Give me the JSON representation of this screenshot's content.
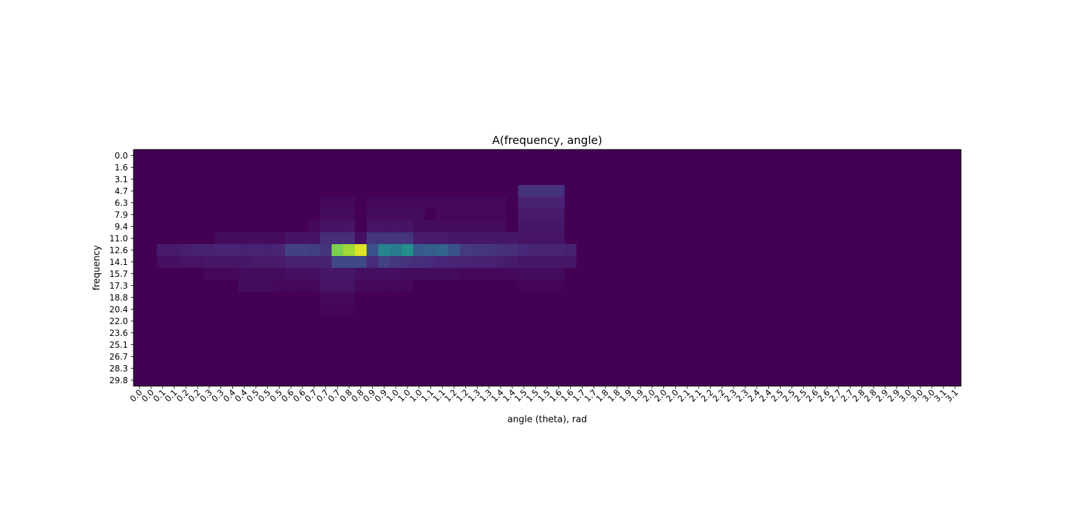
{
  "chart_data": {
    "type": "heatmap",
    "title": "A(frequency, angle)",
    "xlabel": "angle (theta), rad",
    "ylabel": "frequency",
    "colormap": "viridis",
    "value_range": [
      0,
      1
    ],
    "y_tick_labels": [
      "0.0",
      "1.6",
      "3.1",
      "4.7",
      "6.3",
      "7.9",
      "9.4",
      "11.0",
      "12.6",
      "14.1",
      "15.7",
      "17.3",
      "18.8",
      "20.4",
      "22.0",
      "23.6",
      "25.1",
      "26.7",
      "28.3",
      "29.8"
    ],
    "x_tick_labels": [
      "0.0",
      "0.0",
      "0.1",
      "0.1",
      "0.2",
      "0.2",
      "0.3",
      "0.3",
      "0.4",
      "0.4",
      "0.5",
      "0.5",
      "0.5",
      "0.6",
      "0.6",
      "0.7",
      "0.7",
      "0.7",
      "0.8",
      "0.8",
      "0.9",
      "0.9",
      "1.0",
      "1.0",
      "1.0",
      "1.1",
      "1.1",
      "1.2",
      "1.2",
      "1.3",
      "1.3",
      "1.4",
      "1.4",
      "1.5",
      "1.5",
      "1.5",
      "1.6",
      "1.6",
      "1.7",
      "1.7",
      "1.8",
      "1.8",
      "1.9",
      "1.9",
      "2.0",
      "2.0",
      "2.0",
      "2.1",
      "2.1",
      "2.2",
      "2.2",
      "2.3",
      "2.3",
      "2.4",
      "2.4",
      "2.5",
      "2.5",
      "2.5",
      "2.6",
      "2.6",
      "2.7",
      "2.7",
      "2.8",
      "2.8",
      "2.9",
      "2.9",
      "3.0",
      "3.0",
      "3.0",
      "3.1",
      "3.1"
    ],
    "row_profiles": [
      {
        "row": 3,
        "segments": [
          {
            "cols": [
              33,
              37
            ],
            "value": 0.14
          }
        ]
      },
      {
        "row": 4,
        "segments": [
          {
            "cols": [
              16,
              19
            ],
            "value": 0.02
          },
          {
            "cols": [
              20,
              32
            ],
            "value": 0.02
          },
          {
            "cols": [
              33,
              37
            ],
            "value": 0.09
          }
        ]
      },
      {
        "row": 5,
        "segments": [
          {
            "cols": [
              16,
              19
            ],
            "value": 0.03
          },
          {
            "cols": [
              20,
              25
            ],
            "value": 0.03
          },
          {
            "cols": [
              26,
              32
            ],
            "value": 0.02
          },
          {
            "cols": [
              33,
              37
            ],
            "value": 0.07
          }
        ]
      },
      {
        "row": 6,
        "segments": [
          {
            "cols": [
              15,
              16
            ],
            "value": 0.02
          },
          {
            "cols": [
              16,
              19
            ],
            "value": 0.05
          },
          {
            "cols": [
              20,
              24
            ],
            "value": 0.05
          },
          {
            "cols": [
              24,
              32
            ],
            "value": 0.03
          },
          {
            "cols": [
              33,
              37
            ],
            "value": 0.06
          }
        ]
      },
      {
        "row": 7,
        "segments": [
          {
            "cols": [
              7,
              13
            ],
            "value": 0.03
          },
          {
            "cols": [
              13,
              16
            ],
            "value": 0.05
          },
          {
            "cols": [
              16,
              19
            ],
            "value": 0.13
          },
          {
            "cols": [
              19,
              20
            ],
            "value": 0.04
          },
          {
            "cols": [
              20,
              24
            ],
            "value": 0.15
          },
          {
            "cols": [
              24,
              27
            ],
            "value": 0.07
          },
          {
            "cols": [
              27,
              33
            ],
            "value": 0.06
          },
          {
            "cols": [
              33,
              37
            ],
            "value": 0.05
          }
        ]
      },
      {
        "row": 8,
        "values": [
          0.0,
          0.0,
          0.07,
          0.07,
          0.08,
          0.09,
          0.09,
          0.1,
          0.1,
          0.09,
          0.1,
          0.09,
          0.1,
          0.19,
          0.19,
          0.18,
          0.15,
          0.8,
          0.86,
          0.95,
          0.25,
          0.45,
          0.42,
          0.5,
          0.28,
          0.3,
          0.32,
          0.25,
          0.17,
          0.16,
          0.15,
          0.14,
          0.13,
          0.11,
          0.1,
          0.1,
          0.1,
          0.09
        ]
      },
      {
        "row": 9,
        "values": [
          0.0,
          0.0,
          0.04,
          0.04,
          0.05,
          0.05,
          0.06,
          0.06,
          0.06,
          0.06,
          0.07,
          0.07,
          0.07,
          0.09,
          0.09,
          0.09,
          0.09,
          0.21,
          0.21,
          0.22,
          0.12,
          0.19,
          0.16,
          0.14,
          0.13,
          0.12,
          0.11,
          0.1,
          0.1,
          0.09,
          0.09,
          0.08,
          0.07,
          0.06,
          0.06,
          0.06,
          0.06,
          0.06
        ]
      },
      {
        "row": 10,
        "segments": [
          {
            "cols": [
              6,
              9
            ],
            "value": 0.02
          },
          {
            "cols": [
              9,
              13
            ],
            "value": 0.03
          },
          {
            "cols": [
              13,
              16
            ],
            "value": 0.04
          },
          {
            "cols": [
              16,
              19
            ],
            "value": 0.06
          },
          {
            "cols": [
              19,
              23
            ],
            "value": 0.04
          },
          {
            "cols": [
              23,
              28
            ],
            "value": 0.03
          },
          {
            "cols": [
              28,
              33
            ],
            "value": 0.02
          },
          {
            "cols": [
              33,
              37
            ],
            "value": 0.03
          }
        ]
      },
      {
        "row": 11,
        "segments": [
          {
            "cols": [
              9,
              12
            ],
            "value": 0.03
          },
          {
            "cols": [
              12,
              16
            ],
            "value": 0.02
          },
          {
            "cols": [
              16,
              19
            ],
            "value": 0.05
          },
          {
            "cols": [
              19,
              24
            ],
            "value": 0.02
          },
          {
            "cols": [
              33,
              37
            ],
            "value": 0.01
          }
        ]
      },
      {
        "row": 12,
        "segments": [
          {
            "cols": [
              16,
              19
            ],
            "value": 0.025
          }
        ]
      },
      {
        "row": 13,
        "segments": [
          {
            "cols": [
              16,
              19
            ],
            "value": 0.015
          }
        ]
      }
    ]
  }
}
